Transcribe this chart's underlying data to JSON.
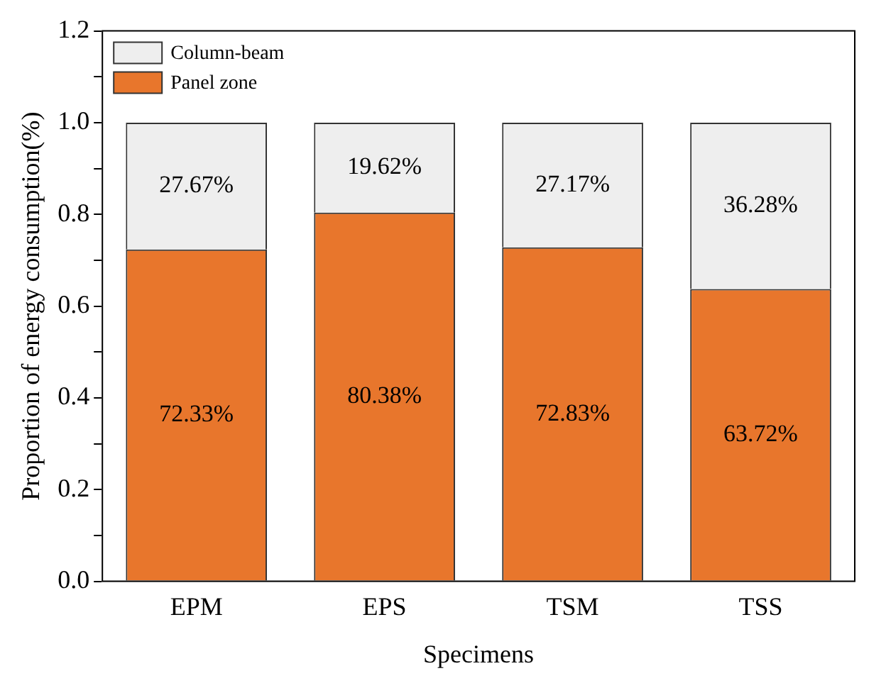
{
  "chart_data": {
    "type": "bar",
    "stacked": true,
    "xlabel": "Specimens",
    "ylabel": "Proportion of energy consumption(%)",
    "categories": [
      "EPM",
      "EPS",
      "TSM",
      "TSS"
    ],
    "series": [
      {
        "name": "Panel zone",
        "color": "#e8762c",
        "values": [
          0.7233,
          0.8038,
          0.7283,
          0.6372
        ],
        "value_labels": [
          "72.33%",
          "80.38%",
          "72.83%",
          "63.72%"
        ]
      },
      {
        "name": "Column-beam",
        "color": "#eeeeee",
        "values": [
          0.2767,
          0.1962,
          0.2717,
          0.3628
        ],
        "value_labels": [
          "27.67%",
          "19.62%",
          "27.17%",
          "36.28%"
        ]
      }
    ],
    "ylim": [
      0,
      1.2
    ],
    "yticks": [
      {
        "value": 0,
        "label": "0.0"
      },
      {
        "value": 0.1,
        "label": null
      },
      0.2,
      {
        "value": 0.3,
        "label": null
      },
      0.4,
      {
        "value": 0.5,
        "label": null
      },
      0.6,
      {
        "value": 0.7,
        "label": null
      },
      0.8,
      {
        "value": 0.9,
        "label": null
      },
      {
        "value": 1.0,
        "label": "1.0"
      },
      {
        "value": 1.1,
        "label": null
      },
      1.2
    ],
    "grid": false,
    "legend": "top left"
  }
}
